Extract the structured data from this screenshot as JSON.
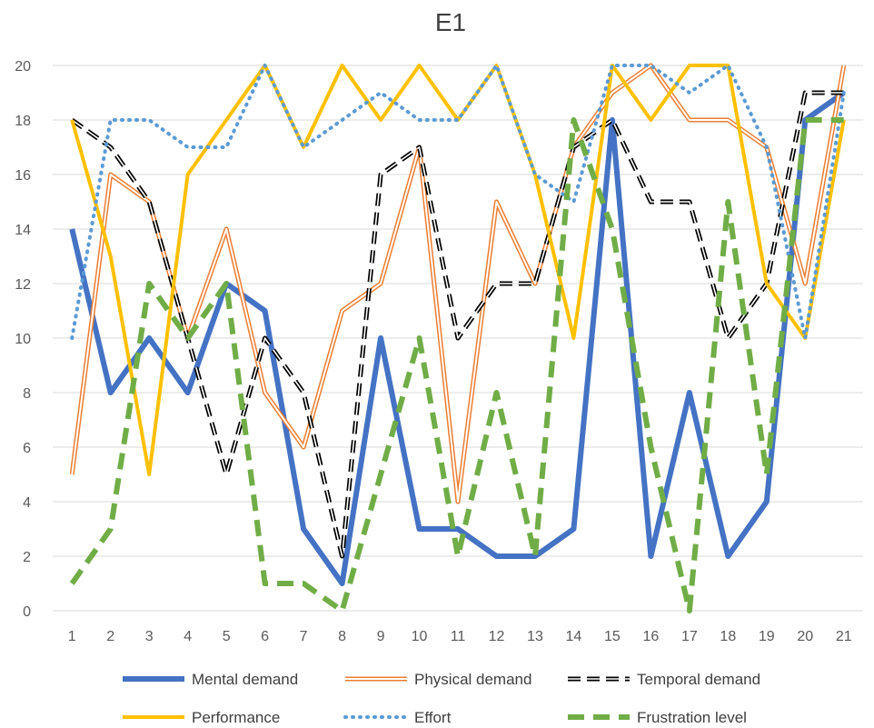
{
  "chart_data": {
    "type": "line",
    "title": "E1",
    "xlabel": "",
    "ylabel": "",
    "categories": [
      "1",
      "2",
      "3",
      "4",
      "5",
      "6",
      "7",
      "8",
      "9",
      "10",
      "11",
      "12",
      "13",
      "14",
      "15",
      "16",
      "17",
      "18",
      "19",
      "20",
      "21"
    ],
    "ylim": [
      0,
      20
    ],
    "yticks": [
      0,
      2,
      4,
      6,
      8,
      10,
      12,
      14,
      16,
      18,
      20
    ],
    "grid": true,
    "legend_position": "bottom",
    "series": [
      {
        "name": "Mental demand",
        "color": "#4472C4",
        "style": "solid-thick",
        "values": [
          14,
          8,
          10,
          8,
          12,
          11,
          3,
          1,
          10,
          3,
          3,
          2,
          2,
          3,
          18,
          2,
          8,
          2,
          4,
          18,
          19
        ]
      },
      {
        "name": "Physical demand",
        "color": "#ED7D31",
        "style": "double",
        "values": [
          5,
          16,
          15,
          10,
          14,
          8,
          6,
          11,
          12,
          17,
          4,
          15,
          12,
          17,
          19,
          20,
          18,
          18,
          17,
          12,
          20
        ]
      },
      {
        "name": "Temporal demand",
        "color": "#000000",
        "style": "dashed-double",
        "values": [
          18,
          17,
          15,
          10,
          5,
          10,
          8,
          2,
          16,
          17,
          10,
          12,
          12,
          17,
          18,
          15,
          15,
          10,
          12,
          19,
          19
        ]
      },
      {
        "name": "Performance",
        "color": "#FFC000",
        "style": "solid",
        "values": [
          18,
          13,
          5,
          16,
          18,
          20,
          17,
          20,
          18,
          20,
          18,
          20,
          16,
          10,
          20,
          18,
          20,
          20,
          12,
          10,
          18
        ]
      },
      {
        "name": "Effort",
        "color": "#5B9BD5",
        "style": "dotted",
        "values": [
          10,
          18,
          18,
          17,
          17,
          20,
          17,
          18,
          19,
          18,
          18,
          20,
          16,
          15,
          20,
          20,
          19,
          20,
          17,
          10,
          19
        ]
      },
      {
        "name": "Frustration level",
        "color": "#70AD47",
        "style": "dashed-thick",
        "values": [
          1,
          3,
          12,
          10,
          12,
          1,
          1,
          0,
          5,
          10,
          2,
          8,
          2,
          18,
          14,
          6,
          0,
          15,
          5,
          18,
          18
        ]
      }
    ]
  }
}
